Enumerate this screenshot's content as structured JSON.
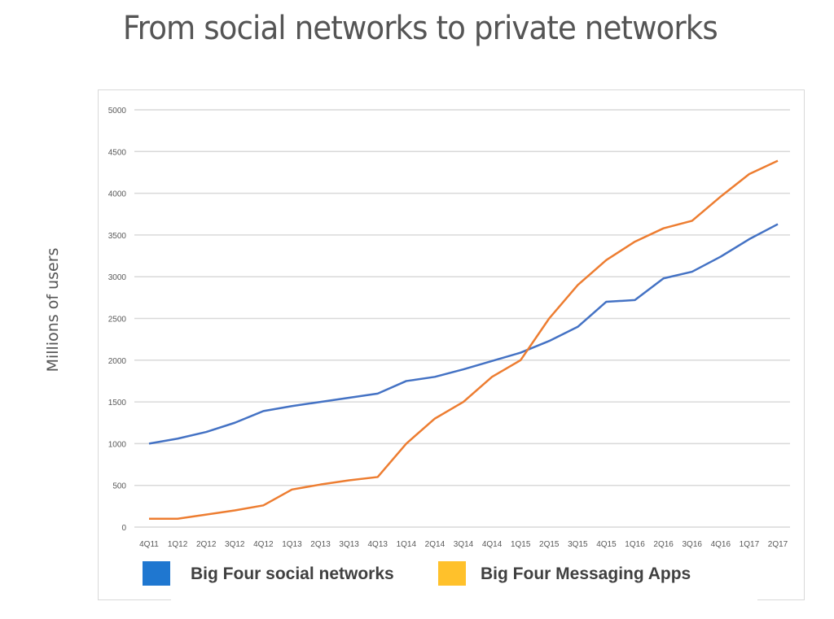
{
  "chart_data": {
    "type": "line",
    "title": "From social networks to private networks",
    "ylabel": "Millions of users",
    "xlabel": "",
    "ylim": [
      0,
      5000
    ],
    "yticks": [
      0,
      500,
      1000,
      1500,
      2000,
      2500,
      3000,
      3500,
      4000,
      4500,
      5000
    ],
    "grid": true,
    "legend_position": "bottom",
    "categories": [
      "4Q11",
      "1Q12",
      "2Q12",
      "3Q12",
      "4Q12",
      "1Q13",
      "2Q13",
      "3Q13",
      "4Q13",
      "1Q14",
      "2Q14",
      "3Q14",
      "4Q14",
      "1Q15",
      "2Q15",
      "3Q15",
      "4Q15",
      "1Q16",
      "2Q16",
      "3Q16",
      "4Q16",
      "1Q17",
      "2Q17"
    ],
    "series": [
      {
        "name": "Big Four social networks",
        "color": "#4472c4",
        "legend_color": "#1f77d0",
        "values": [
          1000,
          1060,
          1140,
          1250,
          1390,
          1450,
          1500,
          1550,
          1600,
          1750,
          1800,
          1890,
          1990,
          2090,
          2230,
          2400,
          2700,
          2720,
          2980,
          3060,
          3240,
          3450,
          3630
        ]
      },
      {
        "name": "Big Four Messaging Apps",
        "color": "#ed7d31",
        "legend_color": "#ffc12b",
        "values": [
          100,
          100,
          150,
          200,
          260,
          450,
          510,
          560,
          600,
          1000,
          1300,
          1500,
          1800,
          2000,
          2500,
          2900,
          3200,
          3420,
          3580,
          3670,
          3960,
          4230,
          4390
        ]
      }
    ]
  }
}
